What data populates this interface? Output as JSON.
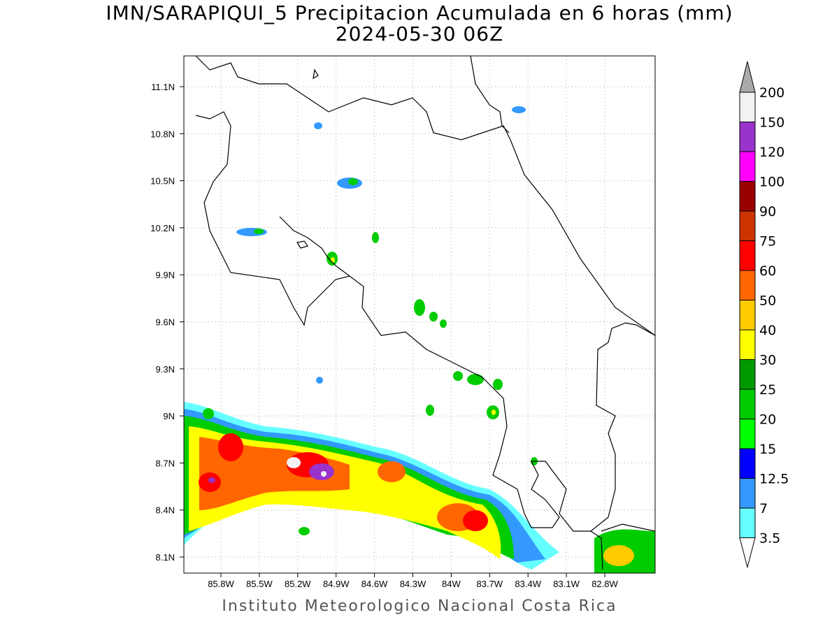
{
  "title": "IMN/SARAPIQUI_5 Precipitacion Acumulada en 6 horas (mm)",
  "subtitle": "2024-05-30 06Z",
  "footer": "Instituto Meteorologico Nacional Costa Rica",
  "lon_ticks": [
    "85.8W",
    "85.5W",
    "85.2W",
    "84.9W",
    "84.6W",
    "84.3W",
    "84W",
    "83.7W",
    "83.4W",
    "83.1W",
    "82.8W"
  ],
  "lat_ticks": [
    "11.1N",
    "10.8N",
    "10.5N",
    "10.2N",
    "9.9N",
    "9.6N",
    "9.3N",
    "9N",
    "8.7N",
    "8.4N",
    "8.1N"
  ],
  "colorbar": {
    "labels": [
      "200",
      "150",
      "120",
      "100",
      "90",
      "75",
      "60",
      "50",
      "40",
      "30",
      "25",
      "20",
      "15",
      "12.5",
      "7",
      "3.5"
    ],
    "colors": [
      "#f2f2f2",
      "#9933cc",
      "#ff00ff",
      "#990000",
      "#cc3300",
      "#ff0000",
      "#ff6600",
      "#ffcc00",
      "#ffff00",
      "#009900",
      "#00cc00",
      "#00ff00",
      "#0000ff",
      "#3399ff",
      "#66ffff"
    ],
    "over_color": "#aaaaaa",
    "under_color": "#ffffff"
  }
}
